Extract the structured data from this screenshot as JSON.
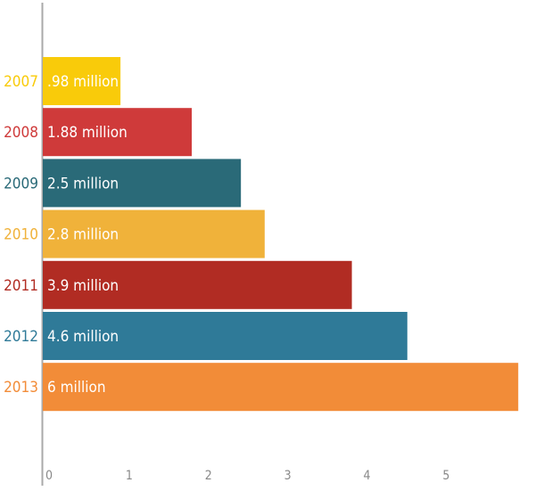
{
  "chart_data": {
    "type": "bar",
    "orientation": "horizontal",
    "title": "",
    "xlabel": "",
    "ylabel": "",
    "categories": [
      "2007",
      "2008",
      "2009",
      "2010",
      "2011",
      "2012",
      "2013"
    ],
    "values": [
      0.98,
      1.88,
      2.5,
      2.8,
      3.9,
      4.6,
      6
    ],
    "data_labels": [
      ".98 million",
      "1.88 million",
      "2.5 million",
      "2.8 million",
      "3.9 million",
      "4.6 million",
      "6 million"
    ],
    "colors": [
      "#F9CB0A",
      "#CF3A3A",
      "#2A6A78",
      "#F0B23A",
      "#B12C23",
      "#2F7A98",
      "#F28C38"
    ],
    "xlim": [
      0,
      6
    ],
    "xticks": [
      0,
      1,
      2,
      3,
      4,
      5
    ],
    "grid": false,
    "legend": "none"
  }
}
